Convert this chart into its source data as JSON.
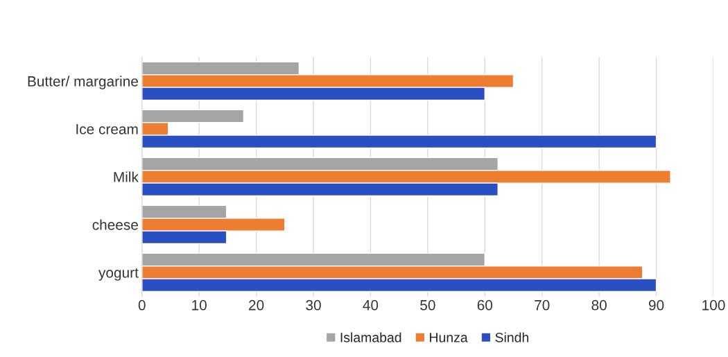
{
  "chart_data": {
    "type": "bar",
    "orientation": "horizontal",
    "categories": [
      "Butter/ margarine",
      "Ice cream",
      "Milk",
      "cheese",
      "yogurt"
    ],
    "series": [
      {
        "name": "Islamabad",
        "color": "#a5a5a5",
        "values": [
          27.5,
          17.8,
          62.3,
          14.8,
          60
        ]
      },
      {
        "name": "Hunza",
        "color": "#ed7d31",
        "values": [
          65,
          4.6,
          92.5,
          25,
          87.6
        ]
      },
      {
        "name": "Sindh",
        "color": "#2a4fc2",
        "values": [
          60,
          90,
          62.3,
          14.8,
          90
        ]
      }
    ],
    "xlim": [
      0,
      100
    ],
    "xticks": [
      0,
      10,
      20,
      30,
      40,
      50,
      60,
      70,
      80,
      90,
      100
    ],
    "grid": "x",
    "legend": "bottom"
  }
}
